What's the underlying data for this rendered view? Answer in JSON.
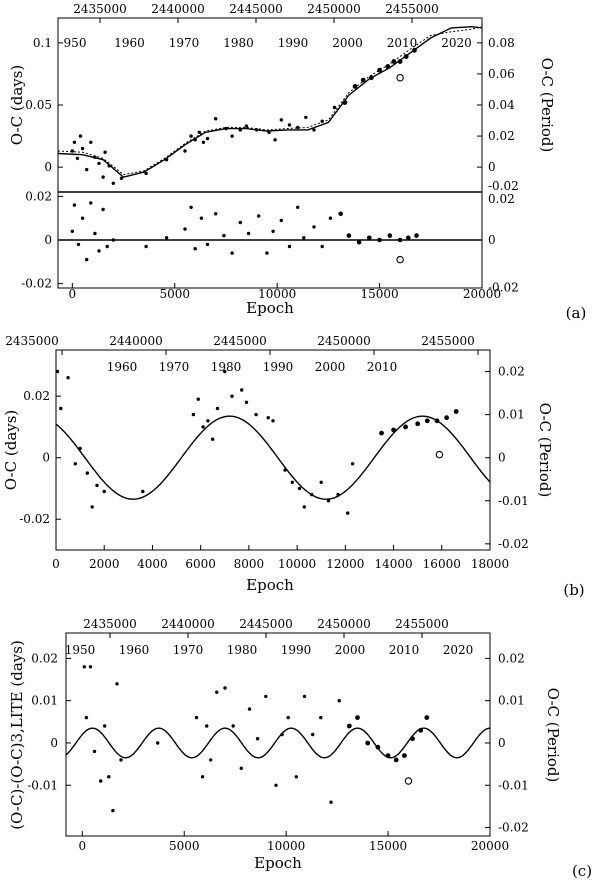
{
  "figure": {
    "panels": [
      "(a)",
      "(b)",
      "(c)"
    ]
  },
  "chart_data": [
    {
      "type": "scatter",
      "panel": "(a)",
      "xlabel": "Epoch",
      "ylabel": "O-C (days)",
      "y2label": "O-C (Period)",
      "xlim": [
        -700,
        20000
      ],
      "ylim": [
        -0.02,
        0.12
      ],
      "xticks": [
        "0",
        "5000",
        "10000",
        "15000",
        "20000"
      ],
      "yticks": [
        "0",
        "0.05",
        "0.1"
      ],
      "y2ticks": [
        "0",
        "0.02",
        "0.04",
        "0.06",
        "0.08"
      ],
      "y2tick_bottom": "-0.02",
      "top_hjd_ticks": [
        "2435000",
        "2440000",
        "2445000",
        "2450000",
        "2455000"
      ],
      "top_year_ticks": [
        "950",
        "1960",
        "1970",
        "1980",
        "1990",
        "2000",
        "2010",
        "2020"
      ],
      "model_solid": [
        [
          -700,
          0.011
        ],
        [
          500,
          0.01
        ],
        [
          1500,
          0.006
        ],
        [
          2500,
          -0.008
        ],
        [
          3500,
          -0.004
        ],
        [
          4500,
          0.006
        ],
        [
          5500,
          0.018
        ],
        [
          6500,
          0.028
        ],
        [
          7500,
          0.031
        ],
        [
          8500,
          0.031
        ],
        [
          9500,
          0.029
        ],
        [
          10500,
          0.03
        ],
        [
          11500,
          0.03
        ],
        [
          12500,
          0.036
        ],
        [
          13500,
          0.058
        ],
        [
          14500,
          0.071
        ],
        [
          15500,
          0.08
        ],
        [
          16500,
          0.092
        ],
        [
          17500,
          0.104
        ],
        [
          18500,
          0.112
        ],
        [
          19500,
          0.113
        ],
        [
          20000,
          0.112
        ]
      ],
      "model_dotted": [
        [
          -700,
          0.013
        ],
        [
          500,
          0.012
        ],
        [
          1500,
          0.007
        ],
        [
          2500,
          -0.006
        ],
        [
          3500,
          -0.003
        ],
        [
          4500,
          0.007
        ],
        [
          5500,
          0.019
        ],
        [
          6500,
          0.029
        ],
        [
          7500,
          0.032
        ],
        [
          8500,
          0.032
        ],
        [
          9500,
          0.03
        ],
        [
          10500,
          0.031
        ],
        [
          11500,
          0.032
        ],
        [
          12500,
          0.038
        ],
        [
          13500,
          0.06
        ],
        [
          14500,
          0.073
        ],
        [
          15500,
          0.083
        ],
        [
          16500,
          0.095
        ],
        [
          17500,
          0.106
        ],
        [
          18500,
          0.109
        ],
        [
          19500,
          0.111
        ],
        [
          20000,
          0.113
        ]
      ],
      "points": [
        [
          0,
          0.013
        ],
        [
          100,
          0.02
        ],
        [
          250,
          0.007
        ],
        [
          400,
          0.025
        ],
        [
          500,
          0.015
        ],
        [
          700,
          -0.002
        ],
        [
          900,
          0.02
        ],
        [
          1100,
          0.008
        ],
        [
          1300,
          0.003
        ],
        [
          1500,
          -0.008
        ],
        [
          1600,
          0.012
        ],
        [
          1800,
          0.001
        ],
        [
          2000,
          -0.013
        ],
        [
          2400,
          -0.009
        ],
        [
          3600,
          -0.005
        ],
        [
          4600,
          0.006
        ],
        [
          5500,
          0.013
        ],
        [
          5800,
          0.025
        ],
        [
          6000,
          0.022
        ],
        [
          6200,
          0.028
        ],
        [
          6400,
          0.02
        ],
        [
          6600,
          0.023
        ],
        [
          7000,
          0.039
        ],
        [
          7500,
          0.031
        ],
        [
          7800,
          0.025
        ],
        [
          8200,
          0.03
        ],
        [
          8500,
          0.033
        ],
        [
          9000,
          0.03
        ],
        [
          9600,
          0.028
        ],
        [
          9900,
          0.022
        ],
        [
          10200,
          0.038
        ],
        [
          10600,
          0.034
        ],
        [
          11000,
          0.032
        ],
        [
          11400,
          0.04
        ],
        [
          11800,
          0.03
        ],
        [
          12200,
          0.037
        ],
        [
          12800,
          0.048
        ],
        [
          13300,
          0.052
        ],
        [
          13800,
          0.065
        ],
        [
          14200,
          0.07
        ],
        [
          14600,
          0.072
        ],
        [
          15000,
          0.078
        ],
        [
          15400,
          0.081
        ],
        [
          15700,
          0.085
        ],
        [
          16000,
          0.085
        ],
        [
          16300,
          0.089
        ],
        [
          16700,
          0.094
        ]
      ],
      "open_point": [
        16000,
        0.072
      ],
      "residuals": {
        "ylim": [
          -0.022,
          0.022
        ],
        "yticks": [
          "-0.02",
          "0",
          "0.02"
        ],
        "y2ticks": [
          "-0.02",
          "0"
        ],
        "y2tick_top": "0.02",
        "points": [
          [
            0,
            0.004
          ],
          [
            100,
            0.016
          ],
          [
            300,
            -0.002
          ],
          [
            500,
            0.01
          ],
          [
            700,
            -0.009
          ],
          [
            900,
            0.017
          ],
          [
            1100,
            0.003
          ],
          [
            1300,
            -0.005
          ],
          [
            1500,
            0.014
          ],
          [
            1700,
            -0.003
          ],
          [
            2000,
            0.0
          ],
          [
            3600,
            -0.003
          ],
          [
            4600,
            0.001
          ],
          [
            5500,
            0.005
          ],
          [
            5800,
            0.015
          ],
          [
            6000,
            -0.004
          ],
          [
            6300,
            0.01
          ],
          [
            6600,
            -0.002
          ],
          [
            7000,
            0.012
          ],
          [
            7400,
            0.002
          ],
          [
            7800,
            -0.006
          ],
          [
            8200,
            0.008
          ],
          [
            8600,
            0.003
          ],
          [
            9100,
            0.011
          ],
          [
            9500,
            -0.006
          ],
          [
            9800,
            0.004
          ],
          [
            10200,
            0.009
          ],
          [
            10600,
            -0.003
          ],
          [
            11000,
            0.015
          ],
          [
            11300,
            0.001
          ],
          [
            11800,
            0.006
          ],
          [
            12200,
            -0.003
          ],
          [
            12600,
            0.01
          ],
          [
            13100,
            0.012
          ],
          [
            13500,
            0.002
          ],
          [
            14000,
            -0.001
          ],
          [
            14500,
            0.001
          ],
          [
            15000,
            0.0
          ],
          [
            15500,
            0.002
          ],
          [
            16000,
            0.0
          ],
          [
            16400,
            0.001
          ],
          [
            16800,
            0.002
          ]
        ],
        "open_point": [
          16000,
          -0.009
        ]
      }
    },
    {
      "type": "scatter",
      "panel": "(b)",
      "xlabel": "Epoch",
      "ylabel": "O-C (days)",
      "y2label": "O-C (Period)",
      "xlim": [
        0,
        18000
      ],
      "ylim": [
        -0.03,
        0.035
      ],
      "xticks": [
        "0",
        "2000",
        "4000",
        "6000",
        "8000",
        "10000",
        "12000",
        "14000",
        "16000",
        "18000"
      ],
      "yticks": [
        "-0.02",
        "0",
        "0.02"
      ],
      "y2ticks": [
        "-0.02",
        "-0.01",
        "0",
        "0.01",
        "0.02"
      ],
      "top_hjd_ticks": [
        "2435000",
        "2440000",
        "2445000",
        "2450000",
        "2455000"
      ],
      "top_year_ticks": [
        "1960",
        "1970",
        "1980",
        "1990",
        "2000",
        "2010"
      ],
      "model": {
        "amplitude": 0.0135,
        "period_epochs": 8000,
        "phase_epoch": 3200
      },
      "points": [
        [
          60,
          0.028
        ],
        [
          200,
          0.016
        ],
        [
          500,
          0.026
        ],
        [
          800,
          -0.002
        ],
        [
          1000,
          0.003
        ],
        [
          1300,
          -0.005
        ],
        [
          1500,
          -0.016
        ],
        [
          1700,
          -0.009
        ],
        [
          2000,
          -0.011
        ],
        [
          3600,
          -0.011
        ],
        [
          5700,
          0.014
        ],
        [
          5900,
          0.019
        ],
        [
          6100,
          0.01
        ],
        [
          6300,
          0.012
        ],
        [
          6500,
          0.006
        ],
        [
          6700,
          0.016
        ],
        [
          7000,
          0.028
        ],
        [
          7300,
          0.02
        ],
        [
          7700,
          0.022
        ],
        [
          7900,
          0.018
        ],
        [
          8300,
          0.014
        ],
        [
          8800,
          0.013
        ],
        [
          9000,
          0.012
        ],
        [
          9500,
          -0.004
        ],
        [
          9800,
          -0.008
        ],
        [
          10100,
          -0.01
        ],
        [
          10300,
          -0.016
        ],
        [
          10600,
          -0.012
        ],
        [
          11000,
          -0.008
        ],
        [
          11300,
          -0.014
        ],
        [
          11700,
          -0.012
        ],
        [
          12100,
          -0.018
        ],
        [
          12300,
          -0.002
        ],
        [
          13500,
          0.008
        ],
        [
          14000,
          0.009
        ],
        [
          14500,
          0.01
        ],
        [
          15000,
          0.011
        ],
        [
          15400,
          0.012
        ],
        [
          15800,
          0.012
        ],
        [
          16200,
          0.013
        ],
        [
          16600,
          0.015
        ]
      ],
      "open_point": [
        15900,
        0.001
      ]
    },
    {
      "type": "scatter",
      "panel": "(c)",
      "xlabel": "Epoch",
      "ylabel": "(O-C)-(O-C)3,LITE (days)",
      "y2label": "O-C (Period)",
      "xlim": [
        -800,
        20000
      ],
      "ylim": [
        -0.022,
        0.026
      ],
      "xticks": [
        "0",
        "5000",
        "10000",
        "15000",
        "20000"
      ],
      "yticks": [
        "-0.01",
        "0",
        "0.01",
        "0.02"
      ],
      "y2ticks": [
        "-0.02",
        "-0.01",
        "0",
        "0.01",
        "0.02"
      ],
      "top_hjd_ticks": [
        "2435000",
        "2440000",
        "2445000",
        "2450000",
        "2455000"
      ],
      "top_year_ticks": [
        "1950",
        "1960",
        "1970",
        "1980",
        "1990",
        "2000",
        "2010",
        "2020"
      ],
      "model": {
        "amplitude": 0.0035,
        "period_epochs": 3250,
        "phase_epoch": 500
      },
      "points": [
        [
          100,
          0.018
        ],
        [
          200,
          0.006
        ],
        [
          400,
          0.018
        ],
        [
          600,
          -0.002
        ],
        [
          900,
          -0.009
        ],
        [
          1100,
          0.004
        ],
        [
          1300,
          -0.008
        ],
        [
          1500,
          -0.016
        ],
        [
          1700,
          0.014
        ],
        [
          1900,
          -0.004
        ],
        [
          3700,
          0.0
        ],
        [
          5600,
          0.006
        ],
        [
          5900,
          -0.008
        ],
        [
          6100,
          0.004
        ],
        [
          6300,
          -0.004
        ],
        [
          6600,
          0.012
        ],
        [
          7000,
          0.013
        ],
        [
          7400,
          0.004
        ],
        [
          7800,
          -0.006
        ],
        [
          8200,
          0.008
        ],
        [
          8600,
          0.001
        ],
        [
          9000,
          0.011
        ],
        [
          9500,
          -0.01
        ],
        [
          9800,
          0.002
        ],
        [
          10100,
          0.006
        ],
        [
          10500,
          -0.008
        ],
        [
          10900,
          0.011
        ],
        [
          11300,
          0.002
        ],
        [
          11700,
          0.006
        ],
        [
          12200,
          -0.014
        ],
        [
          12600,
          0.01
        ],
        [
          13100,
          0.004
        ],
        [
          13500,
          0.006
        ],
        [
          14000,
          0.0
        ],
        [
          14500,
          -0.001
        ],
        [
          15000,
          -0.003
        ],
        [
          15400,
          -0.004
        ],
        [
          15800,
          -0.003
        ],
        [
          16200,
          0.001
        ],
        [
          16600,
          0.003
        ],
        [
          16900,
          0.006
        ]
      ],
      "open_point": [
        16000,
        -0.009
      ]
    }
  ]
}
